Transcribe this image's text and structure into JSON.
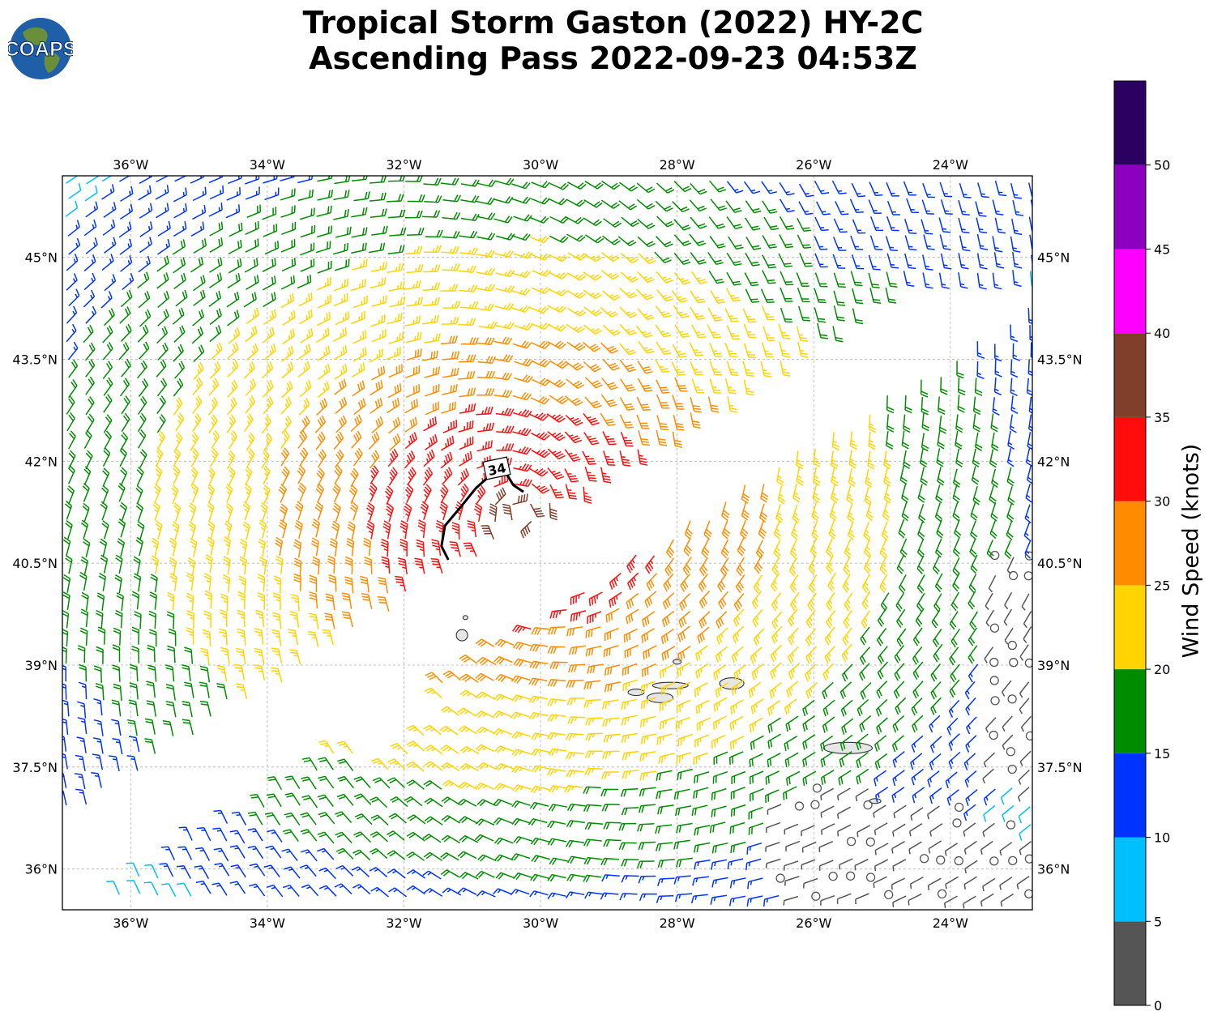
{
  "title": {
    "line1": "Tropical Storm Gaston (2022) HY-2C",
    "line2": "Ascending Pass 2022-09-23 04:53Z"
  },
  "logo": {
    "text": "COAPS",
    "icon": "globe-logo-icon",
    "ocean_color": "#1f5fa8",
    "land_color": "#6a8f3a"
  },
  "map": {
    "lon_range": [
      -37.0,
      -22.8
    ],
    "lat_range": [
      35.4,
      46.2
    ],
    "lon_ticks": [
      {
        "value": -36,
        "label": "36°W"
      },
      {
        "value": -34,
        "label": "34°W"
      },
      {
        "value": -32,
        "label": "32°W"
      },
      {
        "value": -30,
        "label": "30°W"
      },
      {
        "value": -28,
        "label": "28°W"
      },
      {
        "value": -26,
        "label": "26°W"
      },
      {
        "value": -24,
        "label": "24°W"
      }
    ],
    "lat_ticks": [
      {
        "value": 45.0,
        "label": "45°N"
      },
      {
        "value": 43.5,
        "label": "43.5°N"
      },
      {
        "value": 42.0,
        "label": "42°N"
      },
      {
        "value": 40.5,
        "label": "40.5°N"
      },
      {
        "value": 39.0,
        "label": "39°N"
      },
      {
        "value": 37.5,
        "label": "37.5°N"
      },
      {
        "value": 36.0,
        "label": "36°N"
      }
    ],
    "grid": "dashed",
    "contour_label": "34",
    "icons": [
      "wind-barb-icon",
      "calm-circle-icon",
      "island-icon"
    ]
  },
  "colorbar": {
    "label": "Wind Speed (knots)",
    "tick_labels": [
      "0",
      "5",
      "10",
      "15",
      "20",
      "25",
      "30",
      "35",
      "40",
      "45",
      "50"
    ],
    "bins": [
      {
        "min": 0,
        "max": 5,
        "color": "#555555"
      },
      {
        "min": 5,
        "max": 10,
        "color": "#00bfff"
      },
      {
        "min": 10,
        "max": 15,
        "color": "#0033ff"
      },
      {
        "min": 15,
        "max": 20,
        "color": "#008c00"
      },
      {
        "min": 20,
        "max": 25,
        "color": "#ffd400"
      },
      {
        "min": 25,
        "max": 30,
        "color": "#ff8c00"
      },
      {
        "min": 30,
        "max": 35,
        "color": "#ff0d0d"
      },
      {
        "min": 35,
        "max": 40,
        "color": "#7f3f2a"
      },
      {
        "min": 40,
        "max": 45,
        "color": "#ff00ff"
      },
      {
        "min": 45,
        "max": 50,
        "color": "#8c00c0"
      },
      {
        "min": 50,
        "max": 55,
        "color": "#2a0060"
      }
    ]
  },
  "wind": {
    "storm_center": {
      "lon": -30.3,
      "lat": 41.2
    },
    "swath_gap_lon_per_lat": 1.0,
    "colors": {
      "calm": "#555555",
      "ltblue": "#00bfff",
      "blue": "#0033ff",
      "green": "#008c00",
      "yellow": "#ffd400",
      "orange": "#ff8c00",
      "red": "#ff0d0d",
      "brown": "#7f3f2a"
    }
  }
}
